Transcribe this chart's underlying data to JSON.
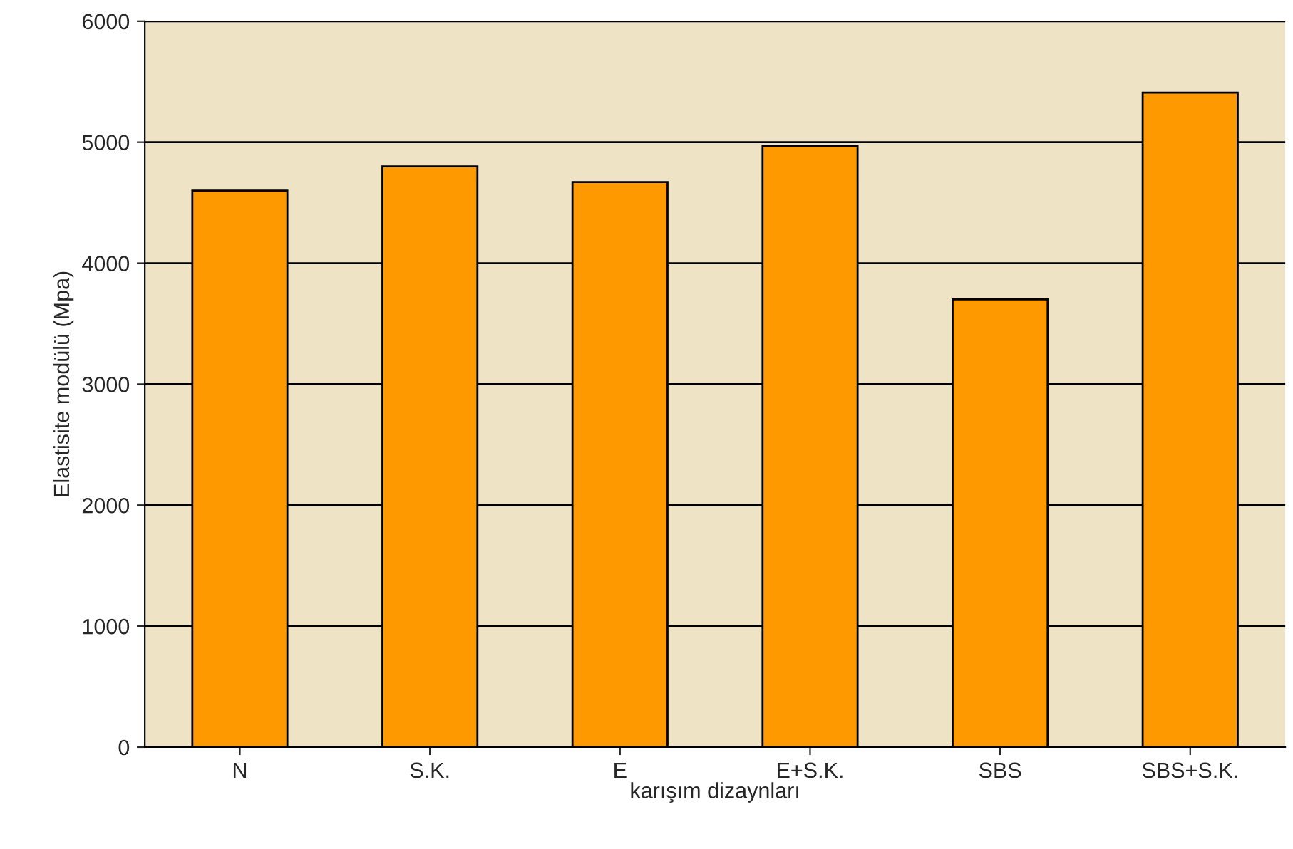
{
  "chart_data": {
    "type": "bar",
    "xlabel": "karışım dizaynları",
    "ylabel": "Elastisite modülü (Mpa)",
    "categories": [
      "N",
      "S.K.",
      "E",
      "E+S.K.",
      "SBS",
      "SBS+S.K."
    ],
    "values": [
      4600,
      4800,
      4670,
      4970,
      3700,
      5410
    ],
    "color": "#ff9900",
    "ylim": [
      0,
      6000
    ],
    "yticks": [
      0,
      1000,
      2000,
      3000,
      4000,
      5000,
      6000
    ],
    "grid": "y"
  }
}
